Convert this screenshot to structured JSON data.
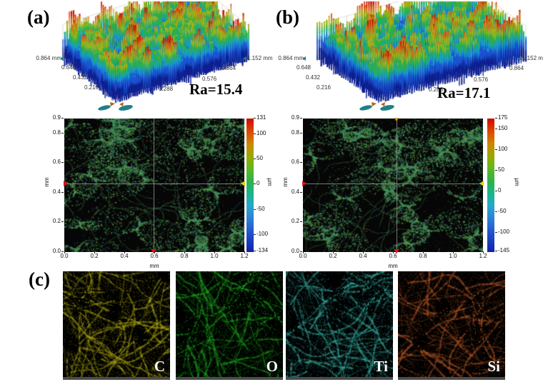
{
  "figure": {
    "panel_a": {
      "label": "(a)",
      "ra": "Ra=15.4",
      "surf_ticks_left": [
        "0.864 mm",
        "0.648",
        "0.432",
        "0.216"
      ],
      "surf_ticks_right": [
        "0.288",
        "0.576",
        "0.864",
        "1.152 mm"
      ],
      "map": {
        "y_ticks": [
          "0.9",
          "0.8",
          "0.6",
          "0.4",
          "0.2",
          "0.0"
        ],
        "x_ticks": [
          "0.0",
          "0.2",
          "0.4",
          "0.6",
          "0.8",
          "1.0",
          "1.2"
        ],
        "x_label": "mm",
        "y_label": "mm",
        "cb_ticks": [
          "131",
          "100",
          "50",
          "0",
          "-50",
          "-100",
          "-134"
        ],
        "cb_unit": "µm"
      }
    },
    "panel_b": {
      "label": "(b)",
      "ra": "Ra=17.1",
      "surf_ticks_left": [
        "0.864 mm",
        "0.648",
        "0.432",
        "0.216"
      ],
      "surf_ticks_right": [
        "0.288",
        "0.576",
        "0.864",
        "1.152 mm"
      ],
      "map": {
        "y_ticks": [
          "0.9",
          "0.8",
          "0.6",
          "0.4",
          "0.2",
          "0.0"
        ],
        "x_ticks": [
          "0.0",
          "0.2",
          "0.4",
          "0.6",
          "0.8",
          "1.0",
          "1.2"
        ],
        "x_label": "mm",
        "y_label": "mm",
        "cb_ticks": [
          "175",
          "150",
          "100",
          "50",
          "0",
          "-50",
          "-100",
          "-145"
        ],
        "cb_unit": "µm"
      }
    },
    "panel_c": {
      "label": "(c)",
      "elements": [
        {
          "symbol": "C",
          "color": "#b4ae14"
        },
        {
          "symbol": "O",
          "color": "#1fae1f"
        },
        {
          "symbol": "Ti",
          "color": "#3ab9ad"
        },
        {
          "symbol": "Si",
          "color": "#b85a28"
        }
      ]
    }
  },
  "chart_data": [
    {
      "type": "heatmap",
      "panel": "a",
      "description": "3D surface topography (top) and 2D height map (bottom) of sample (a)",
      "Ra": 15.4,
      "x_label": "mm",
      "y_label": "mm",
      "x_range": [
        0,
        1.2
      ],
      "y_range": [
        0,
        0.9
      ],
      "x_ticks": [
        0,
        0.2,
        0.4,
        0.6,
        0.8,
        1.0,
        1.2
      ],
      "y_ticks": [
        0,
        0.2,
        0.4,
        0.6,
        0.8,
        0.9
      ],
      "surface_x_ticks_mm": [
        0.288,
        0.576,
        0.864,
        1.152
      ],
      "surface_y_ticks_mm": [
        0.216,
        0.432,
        0.648,
        0.864
      ],
      "colorbar": {
        "unit": "µm",
        "min": -134,
        "max": 131,
        "ticks": [
          131,
          100,
          50,
          0,
          -50,
          -100,
          -134
        ]
      },
      "crosshair_mm": {
        "x": 0.6,
        "y": 0.44
      }
    },
    {
      "type": "heatmap",
      "panel": "b",
      "description": "3D surface topography (top) and 2D height map (bottom) of sample (b)",
      "Ra": 17.1,
      "x_label": "mm",
      "y_label": "mm",
      "x_range": [
        0,
        1.2
      ],
      "y_range": [
        0,
        0.9
      ],
      "x_ticks": [
        0,
        0.2,
        0.4,
        0.6,
        0.8,
        1.0,
        1.2
      ],
      "y_ticks": [
        0,
        0.2,
        0.4,
        0.6,
        0.8,
        0.9
      ],
      "surface_x_ticks_mm": [
        0.288,
        0.576,
        0.864,
        1.152
      ],
      "surface_y_ticks_mm": [
        0.216,
        0.432,
        0.648,
        0.864
      ],
      "colorbar": {
        "unit": "µm",
        "min": -145,
        "max": 175,
        "ticks": [
          175,
          150,
          100,
          50,
          0,
          -50,
          -100,
          -145
        ]
      },
      "crosshair_mm": {
        "x": 0.57,
        "y": 0.44
      }
    },
    {
      "type": "heatmap",
      "panel": "c",
      "description": "EDS elemental distribution maps",
      "elements": [
        "C",
        "O",
        "Ti",
        "Si"
      ]
    }
  ]
}
